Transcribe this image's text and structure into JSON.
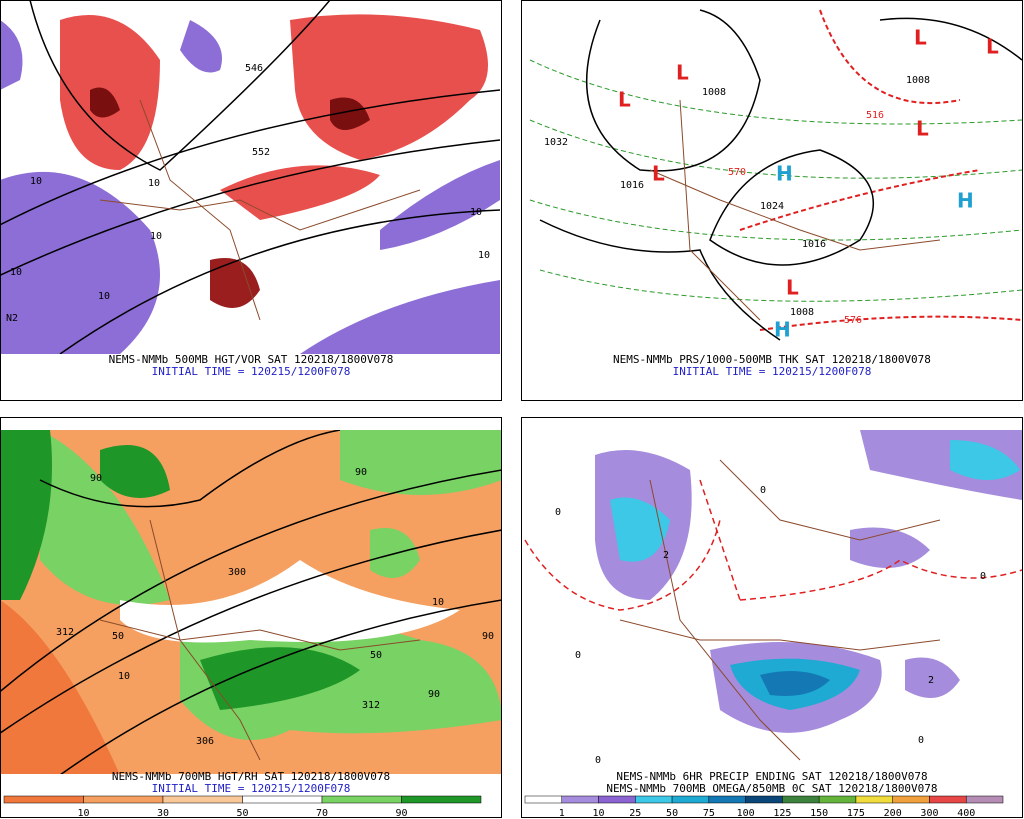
{
  "panels": [
    {
      "caption": "NEMS-NMMb 500MB HGT/VOR SAT 120218/1800V078",
      "initial_time": "INITIAL TIME = 120215/1200F078",
      "labels": [
        "10",
        "10",
        "10",
        "10",
        "10",
        "552",
        "546",
        "N2",
        "10",
        "10"
      ]
    },
    {
      "caption": "NEMS-NMMb PRS/1000-500MB THK SAT 120218/1800V078",
      "initial_time": "INITIAL TIME = 120215/1200F078",
      "labels": [
        "1032",
        "1016",
        "1024",
        "1016",
        "1008",
        "1008",
        "1008",
        "L",
        "L",
        "L",
        "L",
        "L",
        "L",
        "L",
        "H",
        "H",
        "H",
        "570",
        "576",
        "516"
      ]
    },
    {
      "caption": "NEMS-NMMb 700MB HGT/RH SAT 120218/1800V078",
      "initial_time": "INITIAL TIME = 120215/1200F078",
      "labels": [
        "90",
        "90",
        "300",
        "312",
        "306",
        "50",
        "312",
        "10",
        "90",
        "90",
        "50",
        "10"
      ],
      "colorbar": [
        10,
        30,
        50,
        70,
        90
      ],
      "colorbar_colors": [
        "#f0783c",
        "#f5a060",
        "#f8c898",
        "#ffffff",
        "#78d264",
        "#1e9628"
      ]
    },
    {
      "caption": "NEMS-NMMb 6HR PRECIP ENDING SAT 120218/1800V078",
      "caption2": "NEMS-NMMb 700MB OMEGA/850MB 0C SAT 120218/1800V078",
      "labels": [
        "0",
        "0",
        "0",
        "0",
        "0",
        "2",
        "2",
        "0"
      ],
      "colorbar": [
        1,
        10,
        25,
        50,
        75,
        100,
        125,
        150,
        175,
        200,
        300,
        400
      ],
      "colorbar_colors": [
        "#ffffff",
        "#a58cdc",
        "#8c64d2",
        "#3cc8e6",
        "#1eaad2",
        "#1478b4",
        "#0a4678",
        "#3c823c",
        "#64b43c",
        "#f0dc3c",
        "#f0a03c",
        "#e64646",
        "#b48cb4"
      ]
    }
  ]
}
